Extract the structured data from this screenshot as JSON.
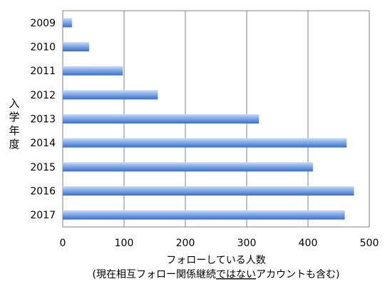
{
  "chart_data": {
    "type": "bar",
    "orientation": "horizontal",
    "categories": [
      "2009",
      "2010",
      "2011",
      "2012",
      "2013",
      "2014",
      "2015",
      "2016",
      "2017"
    ],
    "values": [
      15,
      43,
      98,
      155,
      320,
      463,
      408,
      475,
      460
    ],
    "xlim": [
      0,
      500
    ],
    "xticks": [
      "0",
      "100",
      "200",
      "300",
      "400",
      "500"
    ],
    "xlabel": "フォローしている人数",
    "xlabel_note_before": "(現在相互フォロー関係継続",
    "xlabel_note_underlined": "ではない",
    "xlabel_note_after": "アカウントも含む)",
    "ylabel": "入学年度",
    "grid": "vertical",
    "legend": "none",
    "colors": {
      "bar_top": "#c9dcf7",
      "bar_mid": "#6f9de6",
      "bar_bottom": "#3f6fc4",
      "grid": "#808080",
      "frame": "#808080"
    }
  }
}
